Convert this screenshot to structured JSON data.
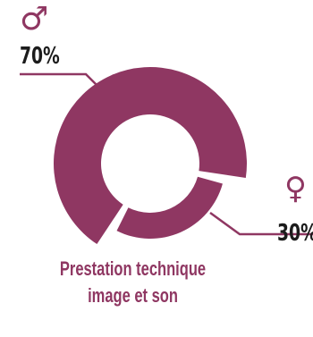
{
  "chart_data": {
    "type": "pie",
    "title": "",
    "categories": [
      "♂",
      "♀"
    ],
    "values": [
      70,
      30
    ],
    "value_labels": [
      "70%",
      "30%"
    ],
    "unit": "%",
    "caption_lines": [
      "Prestation technique",
      "image et son"
    ],
    "colors": {
      "male": "#8f3762",
      "female": "#8f3762",
      "text": "#1c1c1c"
    }
  },
  "legend": {
    "male_symbol": "♂",
    "female_symbol": "♀"
  }
}
